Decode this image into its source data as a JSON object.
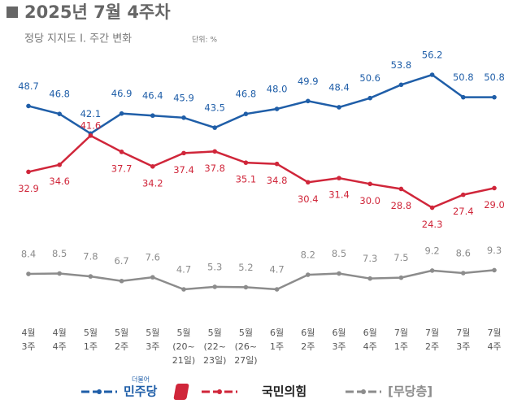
{
  "chart_data": {
    "type": "line",
    "title": "2025년 7월 4주차",
    "subtitle": "정당 지지도 Ⅰ. 주간 변화",
    "unit": "단위: %",
    "categories": [
      [
        "4월",
        "3주"
      ],
      [
        "4월",
        "4주"
      ],
      [
        "5월",
        "1주"
      ],
      [
        "5월",
        "2주"
      ],
      [
        "5월",
        "3주"
      ],
      [
        "5월",
        "(20~",
        "21일)"
      ],
      [
        "5월",
        "(22~",
        "23일)"
      ],
      [
        "5월",
        "(26~",
        "27일)"
      ],
      [
        "6월",
        "1주"
      ],
      [
        "6월",
        "2주"
      ],
      [
        "6월",
        "3주"
      ],
      [
        "6월",
        "4주"
      ],
      [
        "7월",
        "1주"
      ],
      [
        "7월",
        "2주"
      ],
      [
        "7월",
        "3주"
      ],
      [
        "7월",
        "4주"
      ]
    ],
    "series": [
      {
        "name": "민주당",
        "logo_text": "더불어",
        "color": "#1f5ea8",
        "values": [
          48.7,
          46.8,
          42.1,
          46.9,
          46.4,
          45.9,
          43.5,
          46.8,
          48.0,
          49.9,
          48.4,
          50.6,
          53.8,
          56.2,
          50.8,
          50.8
        ],
        "value_labels": [
          "48.7",
          "46.8",
          "42.1",
          "46.9",
          "46.4",
          "45.9",
          "43.5",
          "46.8",
          "48.0",
          "49.9",
          "48.4",
          "50.6",
          "53.8",
          "56.2",
          "50.8",
          "50.8"
        ]
      },
      {
        "name": "국민의힘",
        "color": "#d0263a",
        "values": [
          32.9,
          34.6,
          41.6,
          37.7,
          34.2,
          37.4,
          37.8,
          35.1,
          34.8,
          30.4,
          31.4,
          30.0,
          28.8,
          24.3,
          27.4,
          29.0
        ],
        "value_labels": [
          "32.9",
          "34.6",
          "41.6",
          "37.7",
          "34.2",
          "37.4",
          "37.8",
          "35.1",
          "34.8",
          "30.4",
          "31.4",
          "30.0",
          "28.8",
          "24.3",
          "27.4",
          "29.0"
        ]
      },
      {
        "name": "[무당층]",
        "color": "#8c8c8c",
        "values": [
          8.4,
          8.5,
          7.8,
          6.7,
          7.6,
          4.7,
          5.3,
          5.2,
          4.7,
          8.2,
          8.5,
          7.3,
          7.5,
          9.2,
          8.6,
          9.3
        ],
        "value_labels": [
          "8.4",
          "8.5",
          "7.8",
          "6.7",
          "7.6",
          "4.7",
          "5.3",
          "5.2",
          "4.7",
          "8.2",
          "8.5",
          "7.3",
          "7.5",
          "9.2",
          "8.6",
          "9.3"
        ]
      }
    ]
  }
}
